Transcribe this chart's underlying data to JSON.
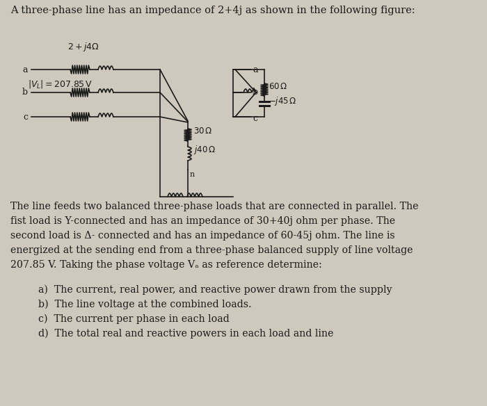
{
  "title_line": "A three-phase line has an impedance of 2+4j as shown in the following figure:",
  "paragraph_lines": [
    "The line feeds two balanced three-phase loads that are connected in parallel. The",
    "fist load is Y-connected and has an impedance of 30+40j ohm per phase. The",
    "second load is Δ- connected and has an impedance of 60-45j ohm. The line is",
    "energized at the sending end from a three-phase balanced supply of line voltage",
    "207.85 V. Taking the phase voltage Vₐ as reference determine:"
  ],
  "items": [
    "a)  The current, real power, and reactive power drawn from the supply",
    "b)  The line voltage at the combined loads.",
    "c)  The current per phase in each load",
    "d)  The total real and reactive powers in each load and line"
  ],
  "bg_color": "#cec9bc",
  "text_color": "#1a1a1a"
}
